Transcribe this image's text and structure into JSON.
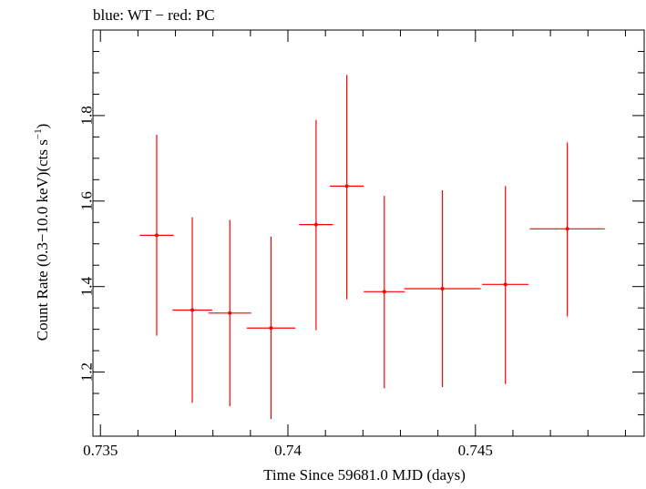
{
  "chart_data": {
    "type": "scatter",
    "title": "blue: WT − red: PC",
    "xlabel": "Time Since 59681.0 MJD (days)",
    "ylabel_main": "Count Rate (0.3−10.0 keV)(cts s",
    "ylabel_sup": "−1",
    "ylabel_close": ")",
    "xlim": [
      0.7348,
      0.7495
    ],
    "ylim": [
      1.05,
      2.0
    ],
    "xticks_major": [
      0.735,
      0.74,
      0.745
    ],
    "xtick_labels": [
      "0.735",
      "0.74",
      "0.745"
    ],
    "yticks_major": [
      1.2,
      1.4,
      1.6,
      1.8
    ],
    "ytick_labels": [
      "1.2",
      "1.4",
      "1.6",
      "1.8"
    ],
    "grid": false,
    "colors": {
      "pc": "#ff0000",
      "axes": "#000000"
    },
    "series": [
      {
        "color": "#ff0000",
        "points": [
          {
            "x": 0.7365,
            "xerr": 0.00045,
            "y": 1.52,
            "ylo": 1.285,
            "yhi": 1.755
          },
          {
            "x": 0.73745,
            "xerr": 0.00053,
            "y": 1.345,
            "ylo": 1.128,
            "yhi": 1.562
          },
          {
            "x": 0.73845,
            "xerr": 0.00057,
            "y": 1.338,
            "ylo": 1.12,
            "yhi": 1.556
          },
          {
            "x": 0.73955,
            "xerr": 0.00065,
            "y": 1.303,
            "ylo": 1.09,
            "yhi": 1.517
          },
          {
            "x": 0.74075,
            "xerr": 0.00045,
            "y": 1.545,
            "ylo": 1.298,
            "yhi": 1.79
          },
          {
            "x": 0.74157,
            "xerr": 0.00045,
            "y": 1.635,
            "ylo": 1.37,
            "yhi": 1.895
          },
          {
            "x": 0.74257,
            "xerr": 0.00055,
            "y": 1.388,
            "ylo": 1.162,
            "yhi": 1.612
          },
          {
            "x": 0.74412,
            "xerr": 0.00102,
            "y": 1.395,
            "ylo": 1.165,
            "yhi": 1.625
          },
          {
            "x": 0.7458,
            "xerr": 0.00062,
            "y": 1.405,
            "ylo": 1.172,
            "yhi": 1.635
          },
          {
            "x": 0.74745,
            "xerr": 0.001,
            "y": 1.535,
            "ylo": 1.33,
            "yhi": 1.737
          }
        ]
      }
    ]
  }
}
